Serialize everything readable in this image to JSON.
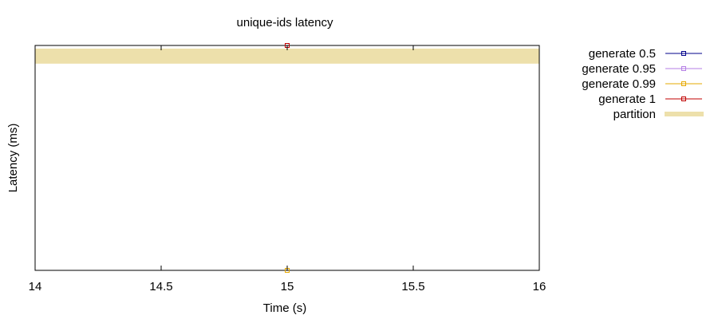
{
  "chart_data": {
    "type": "line",
    "title": "unique-ids latency",
    "xlabel": "Time (s)",
    "ylabel": "Latency (ms)",
    "xlim": [
      14,
      16
    ],
    "x_ticks": [
      "14",
      "14.5",
      "15",
      "15.5",
      "16"
    ],
    "y_ticks": [],
    "grid": false,
    "legend_position": "outside-right",
    "partition": {
      "name": "partition",
      "color": "#ede0ab",
      "band_top_fraction": 0.986,
      "band_bottom_fraction": 0.919
    },
    "series": [
      {
        "name": "generate 0.5",
        "color": "#00008b",
        "x": [
          15
        ],
        "y_fraction": [
          0.0
        ]
      },
      {
        "name": "generate 0.95",
        "color": "#b57ee5",
        "x": [
          15
        ],
        "y_fraction": [
          0.0
        ]
      },
      {
        "name": "generate 0.99",
        "color": "#e6a800",
        "x": [
          15
        ],
        "y_fraction": [
          0.0
        ]
      },
      {
        "name": "generate 1",
        "color": "#c00000",
        "x": [
          15
        ],
        "y_fraction": [
          1.0
        ]
      }
    ]
  }
}
